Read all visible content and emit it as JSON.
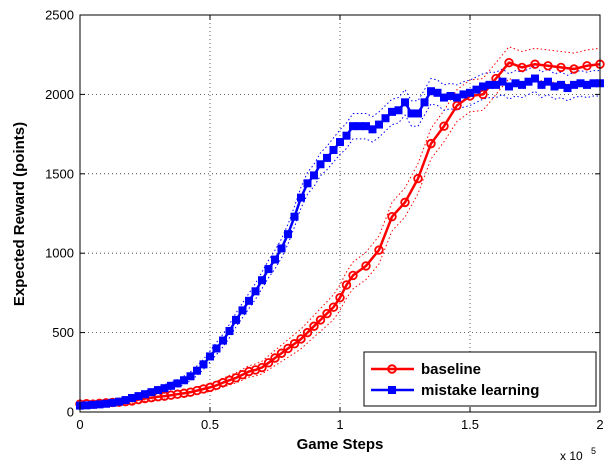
{
  "chart_data": {
    "type": "line",
    "title": "",
    "xlabel": "Game Steps",
    "ylabel": "Expected Reward (points)",
    "xlim": [
      0,
      2
    ],
    "ylim": [
      0,
      2500
    ],
    "x_scale_note": "x 10",
    "x_scale_exponent": "5",
    "xticks": [
      0,
      0.5,
      1,
      1.5,
      2
    ],
    "xtick_labels": [
      "0",
      "0.5",
      "1",
      "1.5",
      "2"
    ],
    "yticks": [
      0,
      500,
      1000,
      1500,
      2000,
      2500
    ],
    "ytick_labels": [
      "0",
      "500",
      "1000",
      "1500",
      "2000",
      "2500"
    ],
    "grid": true,
    "legend_position": "bottom-right",
    "series": [
      {
        "name": "baseline",
        "color": "#ff0000",
        "marker": "circle",
        "confidence_band": "dotted",
        "x": [
          0,
          0.025,
          0.05,
          0.075,
          0.1,
          0.125,
          0.15,
          0.175,
          0.2,
          0.225,
          0.25,
          0.275,
          0.3,
          0.325,
          0.35,
          0.375,
          0.4,
          0.425,
          0.45,
          0.475,
          0.5,
          0.525,
          0.55,
          0.575,
          0.6,
          0.625,
          0.65,
          0.675,
          0.7,
          0.725,
          0.75,
          0.775,
          0.8,
          0.825,
          0.85,
          0.875,
          0.9,
          0.925,
          0.95,
          0.975,
          1.0,
          1.025,
          1.05,
          1.1,
          1.15,
          1.2,
          1.25,
          1.3,
          1.35,
          1.4,
          1.45,
          1.5,
          1.55,
          1.6,
          1.65,
          1.7,
          1.75,
          1.8,
          1.85,
          1.9,
          1.95,
          2.0
        ],
        "y": [
          50,
          52,
          50,
          55,
          58,
          60,
          62,
          66,
          70,
          78,
          85,
          90,
          96,
          100,
          106,
          112,
          118,
          125,
          135,
          145,
          155,
          168,
          185,
          200,
          215,
          235,
          255,
          265,
          280,
          310,
          340,
          370,
          400,
          430,
          460,
          500,
          540,
          580,
          620,
          660,
          720,
          800,
          860,
          920,
          1020,
          1230,
          1320,
          1470,
          1690,
          1800,
          1930,
          1990,
          2000,
          2100,
          2200,
          2170,
          2190,
          2180,
          2170,
          2160,
          2180,
          2190
        ],
        "band_half_width": [
          10,
          10,
          10,
          12,
          12,
          12,
          12,
          14,
          14,
          15,
          16,
          16,
          18,
          18,
          20,
          20,
          20,
          22,
          22,
          24,
          25,
          26,
          28,
          30,
          32,
          34,
          36,
          38,
          40,
          44,
          48,
          52,
          55,
          60,
          62,
          65,
          68,
          72,
          75,
          78,
          80,
          82,
          84,
          86,
          88,
          90,
          92,
          94,
          96,
          98,
          100,
          100,
          100,
          100,
          100,
          100,
          100,
          100,
          100,
          100,
          100,
          100
        ]
      },
      {
        "name": "mistake learning",
        "color": "#0000ff",
        "marker": "square",
        "confidence_band": "dotted",
        "x": [
          0,
          0.025,
          0.05,
          0.075,
          0.1,
          0.125,
          0.15,
          0.175,
          0.2,
          0.225,
          0.25,
          0.275,
          0.3,
          0.325,
          0.35,
          0.375,
          0.4,
          0.425,
          0.45,
          0.475,
          0.5,
          0.525,
          0.55,
          0.575,
          0.6,
          0.625,
          0.65,
          0.675,
          0.7,
          0.725,
          0.75,
          0.775,
          0.8,
          0.825,
          0.85,
          0.875,
          0.9,
          0.925,
          0.95,
          0.975,
          1.0,
          1.025,
          1.05,
          1.075,
          1.1,
          1.125,
          1.15,
          1.175,
          1.2,
          1.225,
          1.25,
          1.275,
          1.3,
          1.325,
          1.35,
          1.375,
          1.4,
          1.425,
          1.45,
          1.475,
          1.5,
          1.525,
          1.55,
          1.575,
          1.6,
          1.625,
          1.65,
          1.675,
          1.7,
          1.725,
          1.75,
          1.775,
          1.8,
          1.825,
          1.85,
          1.875,
          1.9,
          1.925,
          1.95,
          1.975,
          2.0
        ],
        "y": [
          40,
          42,
          45,
          48,
          52,
          58,
          65,
          75,
          88,
          100,
          112,
          125,
          138,
          150,
          165,
          180,
          200,
          225,
          260,
          300,
          350,
          400,
          450,
          510,
          580,
          640,
          700,
          760,
          830,
          900,
          960,
          1030,
          1120,
          1230,
          1350,
          1440,
          1490,
          1560,
          1600,
          1650,
          1700,
          1740,
          1800,
          1800,
          1800,
          1780,
          1810,
          1850,
          1890,
          1900,
          1950,
          1880,
          1880,
          1950,
          2020,
          2010,
          1980,
          1990,
          1980,
          2000,
          2010,
          2030,
          2050,
          2060,
          2060,
          2080,
          2050,
          2070,
          2060,
          2080,
          2100,
          2060,
          2080,
          2050,
          2060,
          2040,
          2060,
          2070,
          2060,
          2070,
          2070
        ],
        "band_half_width": [
          12,
          12,
          12,
          12,
          14,
          14,
          16,
          16,
          18,
          18,
          20,
          20,
          22,
          22,
          24,
          24,
          26,
          28,
          30,
          32,
          35,
          38,
          40,
          42,
          44,
          46,
          48,
          50,
          52,
          55,
          58,
          60,
          62,
          64,
          66,
          68,
          70,
          72,
          74,
          76,
          78,
          80,
          80,
          80,
          80,
          80,
          80,
          80,
          80,
          80,
          80,
          80,
          80,
          80,
          80,
          80,
          80,
          80,
          80,
          80,
          80,
          80,
          80,
          80,
          80,
          80,
          80,
          80,
          80,
          80,
          80,
          80,
          80,
          80,
          80,
          80,
          80,
          80,
          80,
          80,
          80
        ]
      }
    ]
  }
}
